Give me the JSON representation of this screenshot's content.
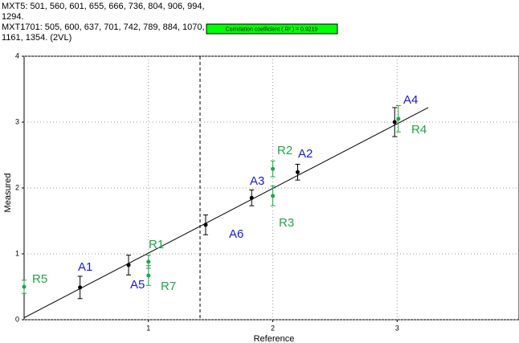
{
  "chart_data": {
    "type": "scatter",
    "header": [
      "MXT5: 501, 560, 601, 655, 666, 736, 804, 906, 994,",
      "1294.",
      "MXT1701: 505, 600, 637, 701, 742, 789, 884, 1070,",
      "1161, 1354. (2VL)"
    ],
    "annotation": "Correlation coefficient ( R² ) = 0.9219",
    "annotation_color": "#00ff00",
    "xlabel": "Reference",
    "ylabel": "Measured",
    "xlim": [
      0,
      3.98
    ],
    "ylim": [
      0,
      4
    ],
    "xticks": [
      1,
      2,
      3
    ],
    "yticks": [
      0,
      1,
      2,
      3,
      4
    ],
    "grid": true,
    "vline": 1.415,
    "fit_line": {
      "x": [
        0,
        3.25
      ],
      "y": [
        0.03,
        3.22
      ]
    },
    "series": [
      {
        "color": "#1a1adc",
        "labels": [
          "A1",
          "A5",
          "A6",
          "A3",
          "A2",
          "A4"
        ],
        "x": [
          0.45,
          0.84,
          1.46,
          1.83,
          2.2,
          2.98
        ],
        "values": [
          0.49,
          0.83,
          1.44,
          1.85,
          2.24,
          3.0
        ],
        "errors": [
          0.17,
          0.15,
          0.15,
          0.12,
          0.12,
          0.22
        ]
      },
      {
        "color": "#1fa64a",
        "labels": [
          "R5",
          "R1",
          "R7",
          "R2",
          "R3",
          "R4"
        ],
        "x": [
          0.0,
          1.0,
          1.0,
          2.0,
          2.0,
          3.01
        ],
        "values": [
          0.5,
          0.88,
          0.67,
          2.29,
          1.88,
          3.05
        ],
        "errors": [
          0.1,
          0.1,
          0.15,
          0.12,
          0.15,
          0.2
        ]
      }
    ]
  }
}
